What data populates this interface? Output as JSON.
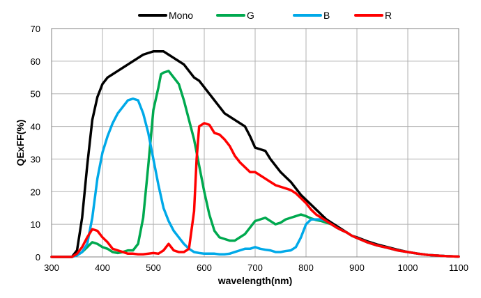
{
  "chart_data": {
    "type": "line",
    "title": "",
    "xlabel": "wavelength(nm)",
    "ylabel": "QExFF(%)",
    "xlim": [
      300,
      1100
    ],
    "ylim": [
      0,
      70
    ],
    "x_ticks": [
      "300",
      "400",
      "500",
      "600",
      "700",
      "800",
      "900",
      "1000",
      "1100"
    ],
    "y_ticks": [
      "0",
      "10",
      "20",
      "30",
      "40",
      "50",
      "60",
      "70"
    ],
    "grid": true,
    "legend_position": "top",
    "series": [
      {
        "name": "Mono",
        "color": "#000000",
        "points": [
          [
            300,
            0
          ],
          [
            340,
            0
          ],
          [
            350,
            2
          ],
          [
            360,
            12
          ],
          [
            370,
            28
          ],
          [
            380,
            42
          ],
          [
            390,
            49
          ],
          [
            400,
            53
          ],
          [
            410,
            55
          ],
          [
            420,
            56
          ],
          [
            430,
            57
          ],
          [
            440,
            58
          ],
          [
            450,
            59
          ],
          [
            460,
            60
          ],
          [
            470,
            61
          ],
          [
            480,
            62
          ],
          [
            490,
            62.5
          ],
          [
            500,
            63
          ],
          [
            510,
            63
          ],
          [
            520,
            63
          ],
          [
            530,
            62
          ],
          [
            540,
            61
          ],
          [
            550,
            60
          ],
          [
            560,
            59
          ],
          [
            570,
            57
          ],
          [
            580,
            55
          ],
          [
            590,
            54
          ],
          [
            600,
            52
          ],
          [
            610,
            50
          ],
          [
            620,
            48
          ],
          [
            630,
            46
          ],
          [
            640,
            44
          ],
          [
            650,
            43
          ],
          [
            660,
            42
          ],
          [
            670,
            41
          ],
          [
            680,
            40
          ],
          [
            690,
            37
          ],
          [
            700,
            33.5
          ],
          [
            710,
            33
          ],
          [
            720,
            32.5
          ],
          [
            730,
            30
          ],
          [
            740,
            28
          ],
          [
            750,
            26
          ],
          [
            760,
            24.5
          ],
          [
            770,
            23
          ],
          [
            780,
            21
          ],
          [
            790,
            19
          ],
          [
            800,
            17.5
          ],
          [
            810,
            16
          ],
          [
            820,
            14.5
          ],
          [
            830,
            13
          ],
          [
            840,
            11.5
          ],
          [
            850,
            10.5
          ],
          [
            860,
            9.5
          ],
          [
            870,
            8.5
          ],
          [
            880,
            7.5
          ],
          [
            890,
            6.5
          ],
          [
            900,
            6
          ],
          [
            920,
            4.8
          ],
          [
            940,
            3.8
          ],
          [
            960,
            3
          ],
          [
            980,
            2.2
          ],
          [
            1000,
            1.5
          ],
          [
            1020,
            1
          ],
          [
            1040,
            0.6
          ],
          [
            1060,
            0.4
          ],
          [
            1080,
            0.2
          ],
          [
            1100,
            0.1
          ]
        ]
      },
      {
        "name": "G",
        "color": "#00a94f",
        "points": [
          [
            300,
            0
          ],
          [
            340,
            0
          ],
          [
            350,
            0.5
          ],
          [
            360,
            1.5
          ],
          [
            370,
            3
          ],
          [
            380,
            4.5
          ],
          [
            390,
            4
          ],
          [
            400,
            3
          ],
          [
            410,
            2.5
          ],
          [
            420,
            1.5
          ],
          [
            430,
            1.2
          ],
          [
            440,
            1.5
          ],
          [
            450,
            2
          ],
          [
            460,
            2
          ],
          [
            470,
            4
          ],
          [
            480,
            12
          ],
          [
            490,
            28
          ],
          [
            500,
            45
          ],
          [
            510,
            52
          ],
          [
            515,
            56
          ],
          [
            520,
            56.5
          ],
          [
            530,
            57
          ],
          [
            540,
            55
          ],
          [
            550,
            53
          ],
          [
            560,
            48
          ],
          [
            570,
            42
          ],
          [
            580,
            36
          ],
          [
            590,
            28
          ],
          [
            600,
            20
          ],
          [
            610,
            13
          ],
          [
            620,
            8
          ],
          [
            630,
            6
          ],
          [
            640,
            5.5
          ],
          [
            650,
            5
          ],
          [
            660,
            5
          ],
          [
            670,
            6
          ],
          [
            680,
            7
          ],
          [
            690,
            9
          ],
          [
            700,
            11
          ],
          [
            710,
            11.5
          ],
          [
            720,
            12
          ],
          [
            730,
            11
          ],
          [
            740,
            10
          ],
          [
            750,
            10.5
          ],
          [
            760,
            11.5
          ],
          [
            770,
            12
          ],
          [
            780,
            12.5
          ],
          [
            790,
            13
          ],
          [
            800,
            12.5
          ],
          [
            810,
            11.8
          ],
          [
            820,
            11.3
          ],
          [
            830,
            11
          ],
          [
            840,
            10.5
          ],
          [
            850,
            10
          ],
          [
            860,
            9
          ],
          [
            870,
            8.2
          ],
          [
            880,
            7.5
          ],
          [
            890,
            6.5
          ],
          [
            900,
            5.8
          ],
          [
            920,
            4.5
          ],
          [
            940,
            3.5
          ],
          [
            960,
            2.8
          ],
          [
            980,
            2
          ],
          [
            1000,
            1.5
          ],
          [
            1020,
            1
          ],
          [
            1040,
            0.6
          ],
          [
            1060,
            0.4
          ],
          [
            1080,
            0.2
          ],
          [
            1100,
            0.1
          ]
        ]
      },
      {
        "name": "B",
        "color": "#00a9e8",
        "points": [
          [
            300,
            0
          ],
          [
            340,
            0
          ],
          [
            350,
            0.5
          ],
          [
            360,
            1.5
          ],
          [
            370,
            4
          ],
          [
            380,
            12
          ],
          [
            390,
            24
          ],
          [
            400,
            32
          ],
          [
            410,
            37
          ],
          [
            420,
            41
          ],
          [
            430,
            44
          ],
          [
            440,
            46
          ],
          [
            450,
            48
          ],
          [
            460,
            48.5
          ],
          [
            470,
            48
          ],
          [
            480,
            44
          ],
          [
            490,
            38
          ],
          [
            500,
            30
          ],
          [
            510,
            22
          ],
          [
            520,
            15
          ],
          [
            530,
            11
          ],
          [
            540,
            8
          ],
          [
            550,
            6
          ],
          [
            560,
            4
          ],
          [
            570,
            2.5
          ],
          [
            580,
            1.5
          ],
          [
            590,
            1.2
          ],
          [
            600,
            1
          ],
          [
            610,
            1
          ],
          [
            620,
            1
          ],
          [
            630,
            0.8
          ],
          [
            640,
            0.8
          ],
          [
            650,
            1
          ],
          [
            660,
            1.5
          ],
          [
            670,
            2
          ],
          [
            680,
            2.5
          ],
          [
            690,
            2.5
          ],
          [
            700,
            3
          ],
          [
            710,
            2.5
          ],
          [
            720,
            2.2
          ],
          [
            730,
            2
          ],
          [
            740,
            1.5
          ],
          [
            750,
            1.5
          ],
          [
            760,
            1.8
          ],
          [
            770,
            2
          ],
          [
            780,
            3
          ],
          [
            790,
            6
          ],
          [
            800,
            10
          ],
          [
            810,
            11.5
          ],
          [
            820,
            11.5
          ],
          [
            830,
            11.5
          ],
          [
            840,
            11
          ],
          [
            850,
            10
          ],
          [
            860,
            9
          ],
          [
            870,
            8.2
          ],
          [
            880,
            7.5
          ],
          [
            890,
            6.5
          ],
          [
            900,
            5.8
          ],
          [
            920,
            4.5
          ],
          [
            940,
            3.5
          ],
          [
            960,
            2.8
          ],
          [
            980,
            2
          ],
          [
            1000,
            1.5
          ],
          [
            1020,
            1
          ],
          [
            1040,
            0.6
          ],
          [
            1060,
            0.4
          ],
          [
            1080,
            0.2
          ],
          [
            1100,
            0.1
          ]
        ]
      },
      {
        "name": "R",
        "color": "#ff0000",
        "points": [
          [
            300,
            0
          ],
          [
            340,
            0
          ],
          [
            350,
            1
          ],
          [
            360,
            3
          ],
          [
            370,
            6
          ],
          [
            380,
            8.5
          ],
          [
            390,
            8
          ],
          [
            400,
            6
          ],
          [
            410,
            4.5
          ],
          [
            420,
            2.5
          ],
          [
            430,
            2
          ],
          [
            440,
            1.5
          ],
          [
            450,
            1
          ],
          [
            460,
            1
          ],
          [
            470,
            0.8
          ],
          [
            480,
            0.8
          ],
          [
            490,
            1
          ],
          [
            500,
            1.2
          ],
          [
            510,
            1
          ],
          [
            520,
            2
          ],
          [
            530,
            4
          ],
          [
            540,
            2
          ],
          [
            550,
            1.5
          ],
          [
            560,
            1.5
          ],
          [
            570,
            2.5
          ],
          [
            580,
            14
          ],
          [
            585,
            30
          ],
          [
            590,
            40
          ],
          [
            600,
            41
          ],
          [
            610,
            40.5
          ],
          [
            620,
            38
          ],
          [
            630,
            37.5
          ],
          [
            640,
            36
          ],
          [
            650,
            34
          ],
          [
            660,
            31
          ],
          [
            670,
            29
          ],
          [
            680,
            27.5
          ],
          [
            690,
            26
          ],
          [
            700,
            26
          ],
          [
            710,
            25
          ],
          [
            720,
            24
          ],
          [
            730,
            23
          ],
          [
            740,
            22
          ],
          [
            750,
            21.5
          ],
          [
            760,
            21
          ],
          [
            770,
            20.5
          ],
          [
            780,
            19.5
          ],
          [
            790,
            18
          ],
          [
            800,
            16.5
          ],
          [
            810,
            14.5
          ],
          [
            820,
            13
          ],
          [
            830,
            12
          ],
          [
            840,
            11
          ],
          [
            850,
            10
          ],
          [
            860,
            9
          ],
          [
            870,
            8.2
          ],
          [
            880,
            7.5
          ],
          [
            890,
            6.5
          ],
          [
            900,
            5.8
          ],
          [
            920,
            4.5
          ],
          [
            940,
            3.5
          ],
          [
            960,
            2.8
          ],
          [
            980,
            2
          ],
          [
            1000,
            1.5
          ],
          [
            1020,
            1
          ],
          [
            1040,
            0.6
          ],
          [
            1060,
            0.4
          ],
          [
            1080,
            0.2
          ],
          [
            1100,
            0.1
          ]
        ]
      }
    ]
  }
}
